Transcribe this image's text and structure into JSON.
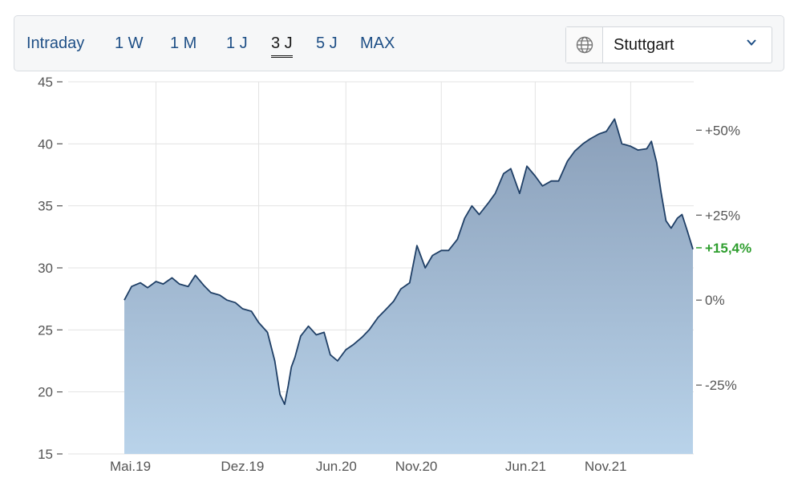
{
  "toolbar": {
    "tabs": [
      {
        "label": "Intraday",
        "active": false
      },
      {
        "label": "1 W",
        "active": false
      },
      {
        "label": "1 M",
        "active": false
      },
      {
        "label": "1 J",
        "active": false
      },
      {
        "label": "3 J",
        "active": true
      },
      {
        "label": "5 J",
        "active": false
      },
      {
        "label": "MAX",
        "active": false
      }
    ],
    "exchange": {
      "selected": "Stuttgart",
      "icon": "globe-icon"
    }
  },
  "colors": {
    "accent": "#1e4f86",
    "line": "#1f3f66",
    "fill_top": "#8a9fb9",
    "fill_bottom": "#b9d3ea",
    "positive": "#2e9e2e"
  },
  "chart_data": {
    "type": "area",
    "ylim": [
      15,
      45
    ],
    "y_ticks": [
      "15",
      "20",
      "25",
      "30",
      "35",
      "40",
      "45"
    ],
    "x_ticks": [
      "Mai.19",
      "Dez.19",
      "Jun.20",
      "Nov.20",
      "Jun.21",
      "Nov.21"
    ],
    "pct_ticks": [
      {
        "label": "+50%",
        "value": 50
      },
      {
        "label": "+25%",
        "value": 25
      },
      {
        "label": "0%",
        "value": 0
      },
      {
        "label": "-25%",
        "value": -25
      }
    ],
    "current_change": {
      "label": "+15,4%",
      "value": 15.4
    },
    "grid": true,
    "series": [
      {
        "x": [
          "2019-05-01",
          "2019-05-15",
          "2019-06-01",
          "2019-06-15",
          "2019-07-01",
          "2019-07-15",
          "2019-08-01",
          "2019-08-15",
          "2019-09-01",
          "2019-09-15",
          "2019-10-01",
          "2019-10-15",
          "2019-11-01",
          "2019-11-15",
          "2019-12-01",
          "2019-12-15",
          "2020-01-01",
          "2020-01-15",
          "2020-02-01",
          "2020-02-15",
          "2020-02-25",
          "2020-03-05",
          "2020-03-12",
          "2020-03-18",
          "2020-03-25",
          "2020-04-05",
          "2020-04-20",
          "2020-05-05",
          "2020-05-20",
          "2020-06-01",
          "2020-06-15",
          "2020-07-01",
          "2020-07-15",
          "2020-08-01",
          "2020-08-15",
          "2020-09-01",
          "2020-09-15",
          "2020-10-01",
          "2020-10-15",
          "2020-11-01",
          "2020-11-15",
          "2020-12-01",
          "2020-12-15",
          "2021-01-01",
          "2021-01-15",
          "2021-02-01",
          "2021-02-15",
          "2021-03-01",
          "2021-03-15",
          "2021-04-01",
          "2021-04-15",
          "2021-05-01",
          "2021-05-15",
          "2021-06-01",
          "2021-06-15",
          "2021-07-01",
          "2021-07-15",
          "2021-08-01",
          "2021-08-15",
          "2021-09-01",
          "2021-09-15",
          "2021-10-01",
          "2021-10-15",
          "2021-11-01",
          "2021-11-15",
          "2021-12-01",
          "2021-12-15",
          "2022-01-01",
          "2022-01-15",
          "2022-02-01",
          "2022-02-10",
          "2022-02-20",
          "2022-03-01",
          "2022-03-10",
          "2022-03-20",
          "2022-04-01",
          "2022-04-10",
          "2022-04-20",
          "2022-05-01"
        ],
        "values": [
          27.4,
          28.5,
          28.8,
          28.4,
          28.9,
          28.7,
          29.2,
          28.7,
          28.5,
          29.4,
          28.6,
          28.0,
          27.8,
          27.4,
          27.2,
          26.7,
          26.5,
          25.6,
          24.8,
          22.5,
          19.8,
          19.0,
          20.5,
          22.0,
          22.8,
          24.5,
          25.3,
          24.6,
          24.8,
          23.0,
          22.5,
          23.4,
          23.8,
          24.4,
          25.0,
          26.0,
          26.6,
          27.3,
          28.3,
          28.8,
          31.8,
          30.0,
          31.0,
          31.4,
          31.4,
          32.3,
          34.0,
          35.0,
          34.3,
          35.2,
          36.0,
          37.6,
          38.0,
          36.0,
          38.2,
          37.4,
          36.6,
          37.0,
          37.0,
          38.6,
          39.4,
          40.0,
          40.4,
          40.8,
          41.0,
          42.0,
          40.0,
          39.8,
          39.5,
          39.6,
          40.2,
          38.5,
          36.0,
          33.8,
          33.2,
          34.0,
          34.3,
          33.0,
          31.5
        ]
      }
    ]
  }
}
